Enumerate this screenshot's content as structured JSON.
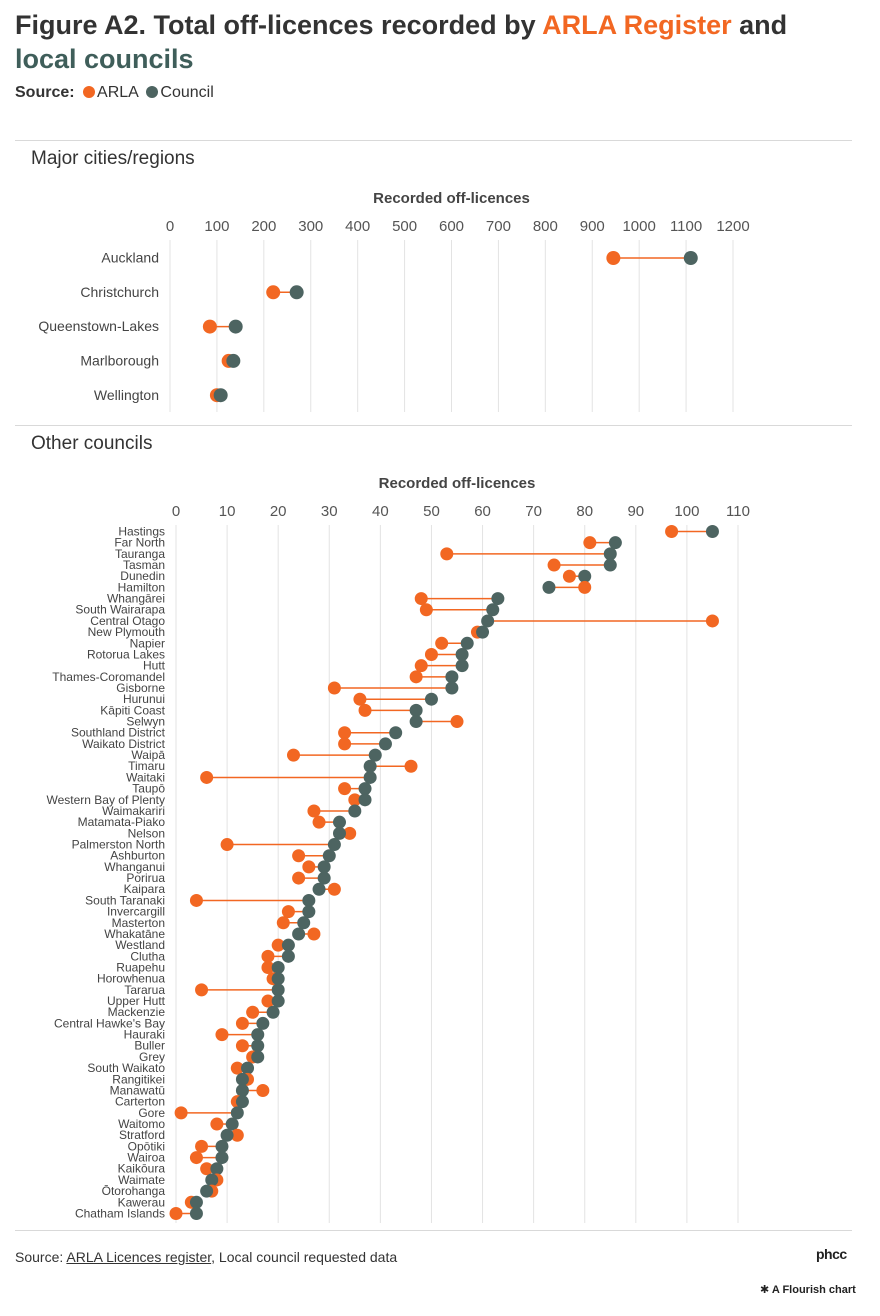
{
  "title": {
    "prefix": "Figure A2. Total off-licences recorded by ",
    "arla": "ARLA Register",
    "connector": " and",
    "council": "local councils"
  },
  "legend": {
    "label": "Source:",
    "arla": "ARLA",
    "council": "Council"
  },
  "colors": {
    "arla": "#F26722",
    "council": "#4D6461",
    "line": "#F26722"
  },
  "sections": {
    "major": "Major cities/regions",
    "other": "Other councils"
  },
  "footer": {
    "source_prefix": "Source: ",
    "source_link": "ARLA Licences register",
    "source_suffix": ", Local council requested data",
    "logo": "phcc",
    "flourish": "A Flourish chart"
  },
  "chart_data": [
    {
      "type": "dumbbell",
      "title": "Major cities/regions",
      "xlabel": "Recorded off-licences",
      "xlim": [
        0,
        1200
      ],
      "xticks": [
        0,
        100,
        200,
        300,
        400,
        500,
        600,
        700,
        800,
        900,
        1000,
        1100,
        1200
      ],
      "series": [
        {
          "name": "ARLA"
        },
        {
          "name": "Council"
        }
      ],
      "rows": [
        {
          "label": "Auckland",
          "arla": 945,
          "council": 1110
        },
        {
          "label": "Christchurch",
          "arla": 220,
          "council": 270
        },
        {
          "label": "Queenstown-Lakes",
          "arla": 85,
          "council": 140
        },
        {
          "label": "Marlborough",
          "arla": 125,
          "council": 135
        },
        {
          "label": "Wellington",
          "arla": 100,
          "council": 108
        }
      ]
    },
    {
      "type": "dumbbell",
      "title": "Other councils",
      "xlabel": "Recorded off-licences",
      "xlim": [
        0,
        110
      ],
      "xticks": [
        0,
        10,
        20,
        30,
        40,
        50,
        60,
        70,
        80,
        90,
        100,
        110
      ],
      "series": [
        {
          "name": "ARLA"
        },
        {
          "name": "Council"
        }
      ],
      "rows": [
        {
          "label": "Hastings",
          "arla": 97,
          "council": 105
        },
        {
          "label": "Far North",
          "arla": 81,
          "council": 86
        },
        {
          "label": "Tauranga",
          "arla": 53,
          "council": 85
        },
        {
          "label": "Tasman",
          "arla": 74,
          "council": 85
        },
        {
          "label": "Dunedin",
          "arla": 77,
          "council": 80
        },
        {
          "label": "Hamilton",
          "arla": 80,
          "council": 73
        },
        {
          "label": "Whangārei",
          "arla": 48,
          "council": 63
        },
        {
          "label": "South Wairarapa",
          "arla": 49,
          "council": 62
        },
        {
          "label": "Central Otago",
          "arla": 105,
          "council": 61
        },
        {
          "label": "New Plymouth",
          "arla": 59,
          "council": 60
        },
        {
          "label": "Napier",
          "arla": 52,
          "council": 57
        },
        {
          "label": "Rotorua Lakes",
          "arla": 50,
          "council": 56
        },
        {
          "label": "Hutt",
          "arla": 48,
          "council": 56
        },
        {
          "label": "Thames-Coromandel",
          "arla": 47,
          "council": 54
        },
        {
          "label": "Gisborne",
          "arla": 31,
          "council": 54
        },
        {
          "label": "Hurunui",
          "arla": 36,
          "council": 50
        },
        {
          "label": "Kāpiti Coast",
          "arla": 37,
          "council": 47
        },
        {
          "label": "Selwyn",
          "arla": 55,
          "council": 47
        },
        {
          "label": "Southland District",
          "arla": 33,
          "council": 43
        },
        {
          "label": "Waikato District",
          "arla": 33,
          "council": 41
        },
        {
          "label": "Waipā",
          "arla": 23,
          "council": 39
        },
        {
          "label": "Timaru",
          "arla": 46,
          "council": 38
        },
        {
          "label": "Waitaki",
          "arla": 6,
          "council": 38
        },
        {
          "label": "Taupō",
          "arla": 33,
          "council": 37
        },
        {
          "label": "Western Bay of Plenty",
          "arla": 35,
          "council": 37
        },
        {
          "label": "Waimakariri",
          "arla": 27,
          "council": 35
        },
        {
          "label": "Matamata-Piako",
          "arla": 28,
          "council": 32
        },
        {
          "label": "Nelson",
          "arla": 34,
          "council": 32
        },
        {
          "label": "Palmerston North",
          "arla": 10,
          "council": 31
        },
        {
          "label": "Ashburton",
          "arla": 24,
          "council": 30
        },
        {
          "label": "Whanganui",
          "arla": 26,
          "council": 29
        },
        {
          "label": "Porirua",
          "arla": 24,
          "council": 29
        },
        {
          "label": "Kaipara",
          "arla": 31,
          "council": 28
        },
        {
          "label": "South Taranaki",
          "arla": 4,
          "council": 26
        },
        {
          "label": "Invercargill",
          "arla": 22,
          "council": 26
        },
        {
          "label": "Masterton",
          "arla": 21,
          "council": 25
        },
        {
          "label": "Whakatāne",
          "arla": 27,
          "council": 24
        },
        {
          "label": "Westland",
          "arla": 20,
          "council": 22
        },
        {
          "label": "Clutha",
          "arla": 18,
          "council": 22
        },
        {
          "label": "Ruapehu",
          "arla": 18,
          "council": 20
        },
        {
          "label": "Horowhenua",
          "arla": 19,
          "council": 20
        },
        {
          "label": "Tararua",
          "arla": 5,
          "council": 20
        },
        {
          "label": "Upper Hutt",
          "arla": 18,
          "council": 20
        },
        {
          "label": "Mackenzie",
          "arla": 15,
          "council": 19
        },
        {
          "label": "Central Hawke's Bay",
          "arla": 13,
          "council": 17
        },
        {
          "label": "Hauraki",
          "arla": 9,
          "council": 16
        },
        {
          "label": "Buller",
          "arla": 13,
          "council": 16
        },
        {
          "label": "Grey",
          "arla": 15,
          "council": 16
        },
        {
          "label": "South Waikato",
          "arla": 12,
          "council": 14
        },
        {
          "label": "Rangitikei",
          "arla": 14,
          "council": 13
        },
        {
          "label": "Manawatū",
          "arla": 17,
          "council": 13
        },
        {
          "label": "Carterton",
          "arla": 12,
          "council": 13
        },
        {
          "label": "Gore",
          "arla": 1,
          "council": 12
        },
        {
          "label": "Waitomo",
          "arla": 8,
          "council": 11
        },
        {
          "label": "Stratford",
          "arla": 12,
          "council": 10
        },
        {
          "label": "Opōtiki",
          "arla": 5,
          "council": 9
        },
        {
          "label": "Wairoa",
          "arla": 4,
          "council": 9
        },
        {
          "label": "Kaikōura",
          "arla": 6,
          "council": 8
        },
        {
          "label": "Waimate",
          "arla": 8,
          "council": 7
        },
        {
          "label": "Ōtorohanga",
          "arla": 7,
          "council": 6
        },
        {
          "label": "Kawerau",
          "arla": 3,
          "council": 4
        },
        {
          "label": "Chatham Islands",
          "arla": 0,
          "council": 4
        }
      ]
    }
  ]
}
